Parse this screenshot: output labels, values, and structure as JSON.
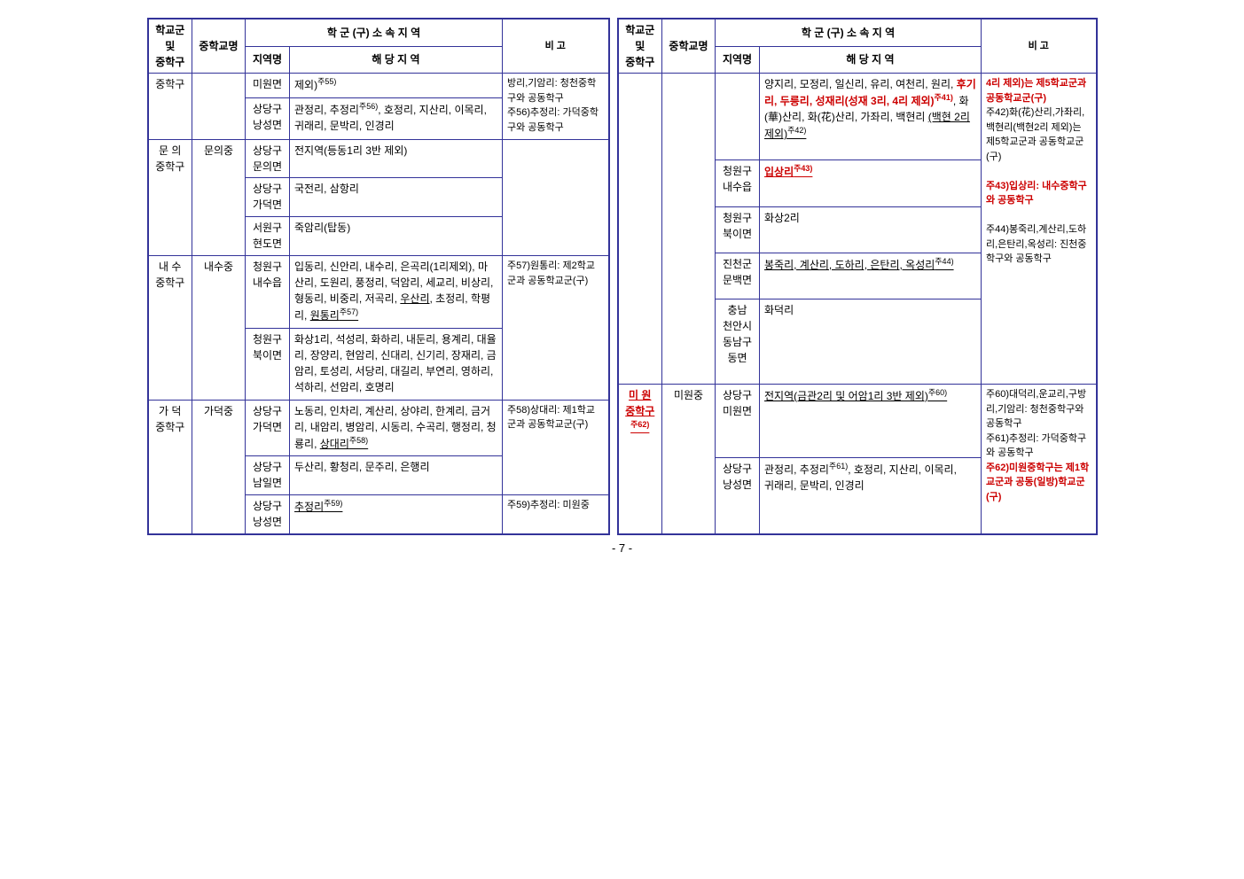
{
  "page_number": "- 7 -",
  "colors": {
    "border": "#333399",
    "red": "#cc0000",
    "text": "#000000",
    "bg": "#ffffff"
  },
  "headers": {
    "district": "학교군\n및\n중학구",
    "school": "중학교명",
    "region_group": "학 군 (구)   소 속 지 역",
    "region_sub": "지역명",
    "area_sub": "해     당     지     역",
    "note": "비     고"
  },
  "left": [
    {
      "district": "중학구",
      "school": "",
      "rows": [
        {
          "region": "미원면",
          "area_html": "제외)<span class='sup'>주55)</span>"
        },
        {
          "region": "상당구\n낭성면",
          "area_html": "관정리, 추정리<span class='sup'>주56)</span>, 호정리, 지산리, 이목리,<br>귀래리, 문박리, 인경리"
        }
      ],
      "note_html": "방리,기암리: 청천중학구와 공동학구<br>주56)추정리: 가덕중학구와 공동학구"
    },
    {
      "district": "문 의\n중학구",
      "school": "문의중",
      "rows": [
        {
          "region": "상당구\n문의면",
          "area_html": "전지역(등동1리 3반 제외)"
        },
        {
          "region": "상당구\n가덕면",
          "area_html": "국전리, 삼항리"
        },
        {
          "region": "서원구\n현도면",
          "area_html": "죽암리(탑동)"
        }
      ],
      "note_html": ""
    },
    {
      "district": "내 수\n중학구",
      "school": "내수중",
      "rows": [
        {
          "region": "청원구\n내수읍",
          "area_html": "입동리, 신안리, 내수리, 은곡리(1리제외), 마산리, 도원리, 풍정리, 덕암리, 세교리, 비상리, 형동리, 비중리, 저곡리, <span class='underline'>우산리</span>, 초정리, 학평리, <span class='underline'>원통리<span class='sup'>주57)</span></span>"
        },
        {
          "region": "청원구\n북이면",
          "area_html": "화상1리, 석성리, 화하리, 내둔리, 용계리, 대율리, 장양리, 현암리, 신대리, 신기리, 장재리, 금암리, 토성리, 서당리, 대길리, 부연리, 영하리, 석하리, 선암리, 호명리"
        }
      ],
      "note_html": "주57)원통리: 제2학교군과 공동학교군(구)"
    },
    {
      "district": "가 덕\n중학구",
      "school": "가덕중",
      "rows": [
        {
          "region": "상당구\n가덕면",
          "area_html": "노동리, 인차리, 계산리, 상야리, 한계리, 금거리, 내암리, 병암리, 시동리, 수곡리, 행정리, 청룡리, <span class='underline'>상대리<span class='sup'>주58)</span></span>"
        },
        {
          "region": "상당구\n남일면",
          "area_html": "두산리, 황청리, 문주리, 은행리"
        },
        {
          "region": "상당구\n낭성면",
          "area_html": "<span class='underline'>추정리<span class='sup'>주59)</span></span>"
        }
      ],
      "note_html": "주58)상대리: 제1학교군과 공동학교군(구)",
      "note2_html": "주59)추정리: 미원중"
    }
  ],
  "right": [
    {
      "district": "",
      "school": "",
      "rows": [
        {
          "region": "",
          "area_html": "양지리, 모정리, 일신리, 유리, 여천리, 원리, <span class='red'>후기리, 두릉리, 성재리(성재 3리, 4리 제외)<span class='sup'>주41)</span></span>, 화(華)산리, 화(花)산리, 가좌리, 백현리 <span class='underline'>(백현 2리 제외)<span class='sup'>주42)</span></span>"
        },
        {
          "region": "청원구\n내수읍",
          "area_html": "<span class='red underline'>입상리<span class='sup'>주43)</span></span>"
        },
        {
          "region": "청원구\n북이면",
          "area_html": "화상2리"
        },
        {
          "region": "진천군\n문백면",
          "area_html": "<span class='underline'>봉죽리, 계산리, 도하리, 은탄리, 옥성리<span class='sup'>주44)</span></span>"
        },
        {
          "region": "충남\n천안시\n동남구\n동면",
          "area_html": "화덕리"
        }
      ],
      "note_html": "<span class='red'>4리 제외)는 제5학교군과 공동학교군(구)</span><br>주42)화(花)산리,가좌리, 백현리(백현2리 제외)는 제5학교군과 공동학교군(구)<br><br><span class='red'>주43)입상리: 내수중학구와 공동학구</span><br><br>주44)봉죽리,계산리,도하리,은탄리,옥성리: 진천중학구와 공동학구"
    },
    {
      "district_html": "<span class='red underline'>미 원 중학구<span class='sup'>주62)</span></span>",
      "school": "미원중",
      "rows": [
        {
          "region": "상당구\n미원면",
          "area_html": "<span class='underline'>전지역(금관2리 및 어암1리 3반 제외)<span class='sup'>주60)</span></span>"
        },
        {
          "region": "상당구\n낭성면",
          "area_html": "관정리, 추정리<span class='sup'>주61)</span>, 호정리, 지산리, 이목리,<br>귀래리, 문박리, 인경리"
        }
      ],
      "note_html": "주60)대덕리,운교리,구방리,기암리: 청천중학구와 공동학구<br>주61)추정리: 가덕중학구와 공동학구<br><span class='red'>주62)미원중학구는 제1학교군과 공동(일방)학교군(구)</span>"
    }
  ]
}
